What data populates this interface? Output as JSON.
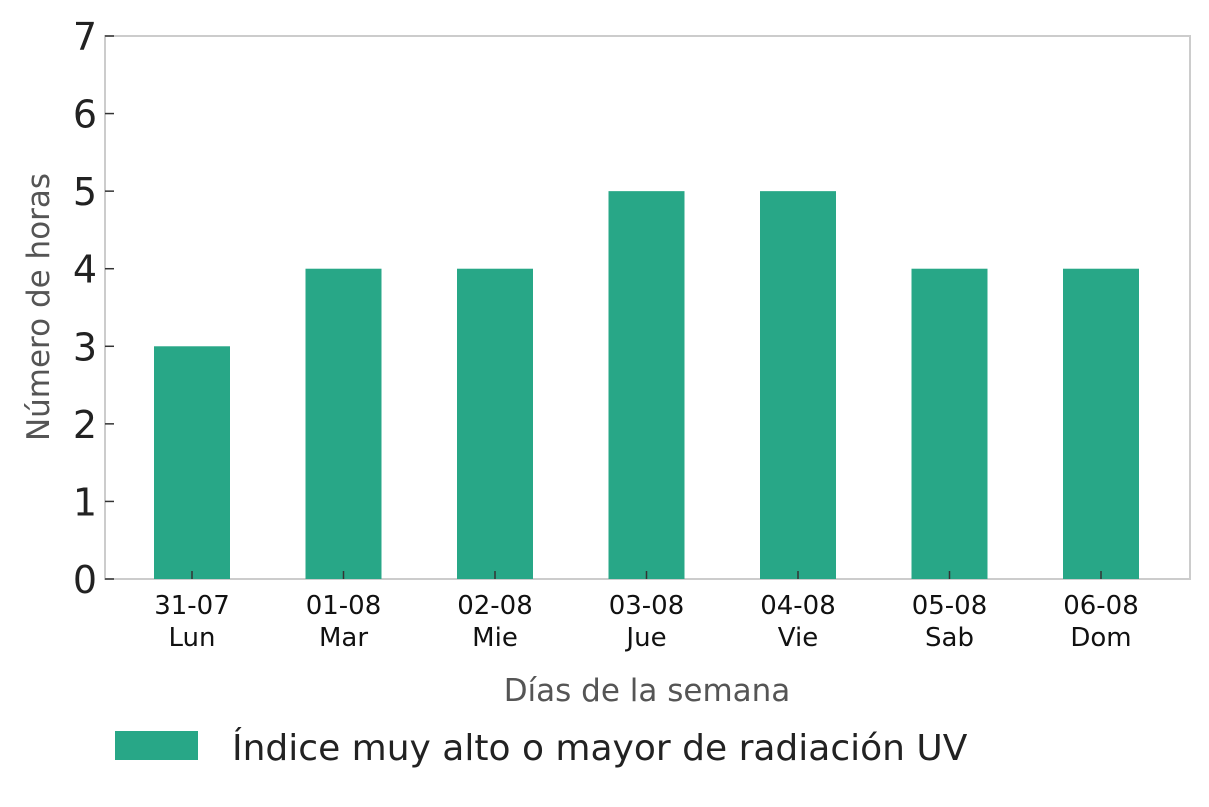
{
  "chart_data": {
    "type": "bar",
    "categories": [
      [
        "31-07",
        "Lun"
      ],
      [
        "01-08",
        "Mar"
      ],
      [
        "02-08",
        "Mie"
      ],
      [
        "03-08",
        "Jue"
      ],
      [
        "04-08",
        "Vie"
      ],
      [
        "05-08",
        "Sab"
      ],
      [
        "06-08",
        "Dom"
      ]
    ],
    "series": [
      {
        "name": "Índice muy alto o mayor de radiación UV",
        "values": [
          3,
          4,
          4,
          5,
          5,
          4,
          4
        ],
        "color": "#28a787"
      }
    ],
    "title": "",
    "xlabel": "Días de la semana",
    "ylabel": "Número de horas",
    "ylim": [
      0,
      7
    ],
    "yticks": [
      "0",
      "1",
      "2",
      "3",
      "4",
      "5",
      "6",
      "7"
    ],
    "grid": false,
    "legend_position": "bottom-left",
    "frame_color": "#cccccc"
  }
}
